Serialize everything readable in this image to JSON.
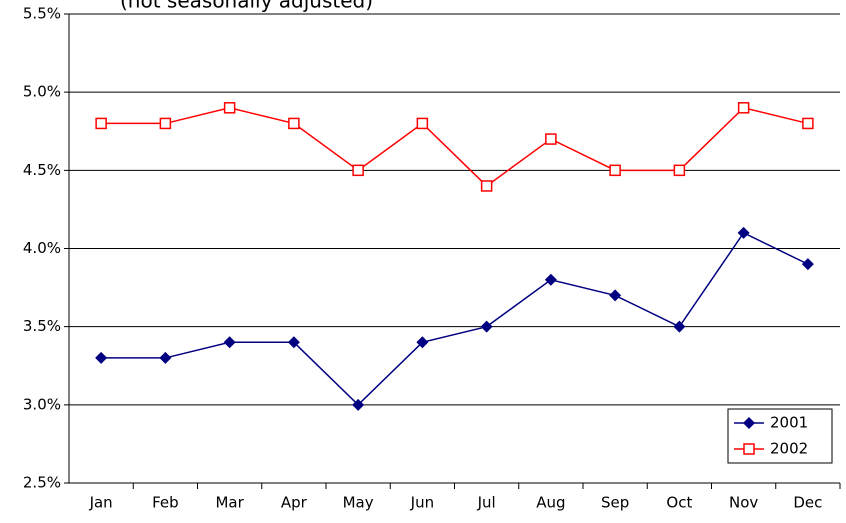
{
  "chart_data": {
    "type": "line",
    "subtitle": "(not seasonally adjusted)",
    "categories": [
      "Jan",
      "Feb",
      "Mar",
      "Apr",
      "May",
      "Jun",
      "Jul",
      "Aug",
      "Sep",
      "Oct",
      "Nov",
      "Dec"
    ],
    "series": [
      {
        "name": "2001",
        "color": "#000080",
        "marker": "diamond",
        "values": [
          3.3,
          3.3,
          3.4,
          3.4,
          3.0,
          3.4,
          3.5,
          3.8,
          3.7,
          3.5,
          4.1,
          3.9
        ]
      },
      {
        "name": "2002",
        "color": "#ff0000",
        "marker": "square",
        "values": [
          4.8,
          4.8,
          4.9,
          4.8,
          4.5,
          4.8,
          4.4,
          4.7,
          4.5,
          4.5,
          4.9,
          4.8
        ]
      }
    ],
    "ylim": [
      2.5,
      5.5
    ],
    "yticks": [
      {
        "value": 2.5,
        "label": "2.5%"
      },
      {
        "value": 3.0,
        "label": "3.0%"
      },
      {
        "value": 3.5,
        "label": "3.5%"
      },
      {
        "value": 4.0,
        "label": "4.0%"
      },
      {
        "value": 4.5,
        "label": "4.5%"
      },
      {
        "value": 5.0,
        "label": "5.0%"
      },
      {
        "value": 5.5,
        "label": "5.5%"
      }
    ],
    "grid": true,
    "legend": "lower right"
  }
}
